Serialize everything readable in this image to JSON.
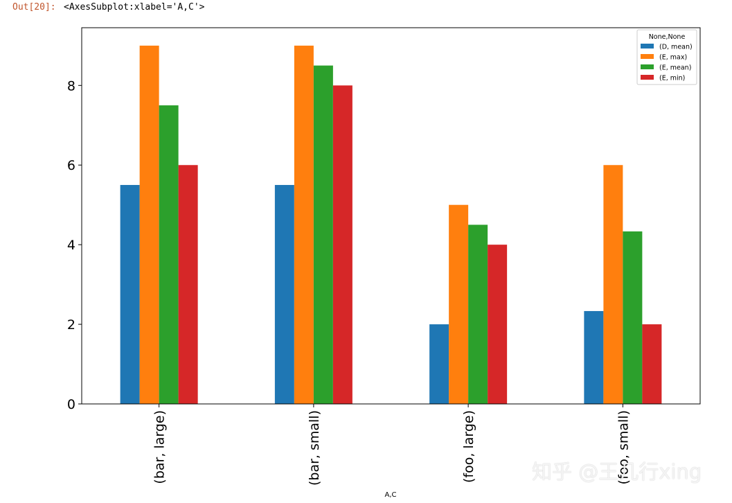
{
  "cell": {
    "prompt": "Out[20]:",
    "output_text": "<AxesSubplot:xlabel='A,C'>"
  },
  "chart_data": {
    "type": "bar",
    "categories": [
      "(bar, large)",
      "(bar, small)",
      "(foo, large)",
      "(foo, small)"
    ],
    "series": [
      {
        "name": "(D, mean)",
        "color": "#1f77b4",
        "values": [
          5.5,
          5.5,
          2.0,
          2.333
        ]
      },
      {
        "name": "(E, max)",
        "color": "#ff7f0e",
        "values": [
          9.0,
          9.0,
          5.0,
          6.0
        ]
      },
      {
        "name": "(E, mean)",
        "color": "#2ca02c",
        "values": [
          7.5,
          8.5,
          4.5,
          4.333
        ]
      },
      {
        "name": "(E, min)",
        "color": "#d62728",
        "values": [
          6.0,
          8.0,
          4.0,
          2.0
        ]
      }
    ],
    "xlabel": "A,C",
    "ylabel": "",
    "ylim": [
      0,
      9.45
    ],
    "yticks": [
      0,
      2,
      4,
      6,
      8
    ],
    "ytick_labels": [
      "0",
      "2",
      "4",
      "6",
      "8"
    ],
    "legend_title": "None,None",
    "legend_placement": "upper right",
    "grid": false,
    "xtick_rotation": "vertical"
  },
  "watermark": "知乎 @王几行xing"
}
